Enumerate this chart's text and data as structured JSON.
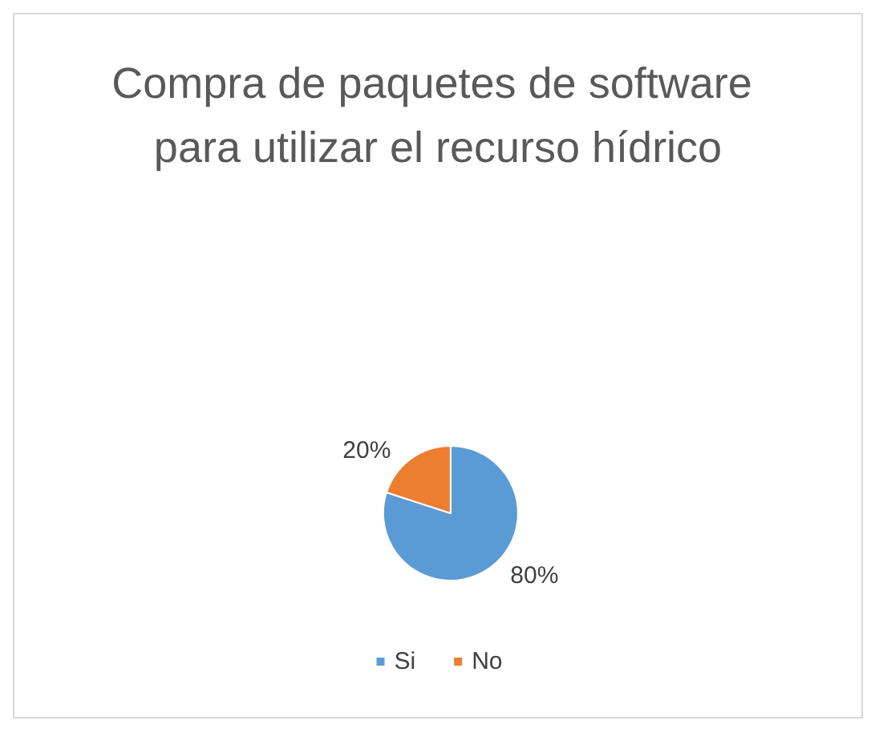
{
  "chart_data": {
    "type": "pie",
    "title": "Compra de paquetes de software para utilizar el recurso hídrico",
    "categories": [
      "Si",
      "No"
    ],
    "values": [
      80,
      20
    ],
    "colors": [
      "#5b9bd5",
      "#ed7d31"
    ],
    "value_labels": [
      "80%",
      "20%"
    ],
    "legend": "bottom"
  }
}
